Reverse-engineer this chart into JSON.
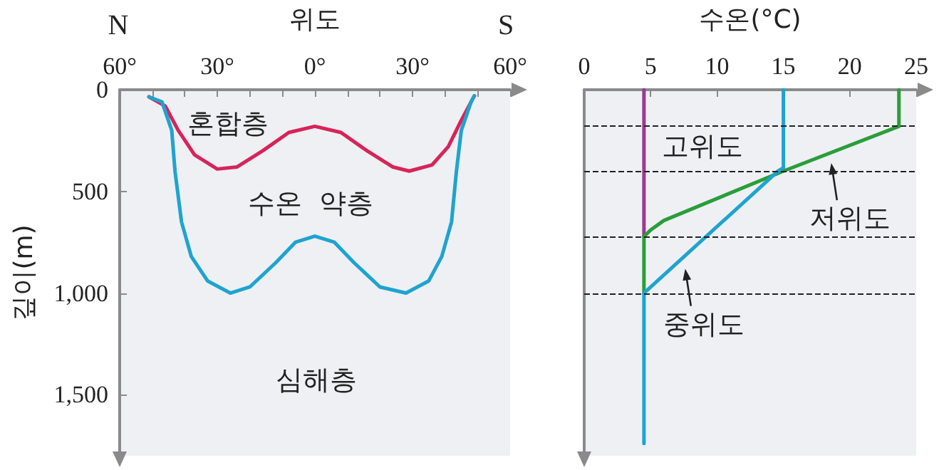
{
  "chart_data": [
    {
      "type": "line",
      "xlabel": "위도",
      "ylabel": "깊이(m)",
      "xlim": [
        -60,
        60
      ],
      "xticks": [
        {
          "value": -60,
          "label": "60°"
        },
        {
          "value": -50,
          "label": null
        },
        {
          "value": -40,
          "label": null
        },
        {
          "value": -30,
          "label": "30°"
        },
        {
          "value": -20,
          "label": null
        },
        {
          "value": -10,
          "label": null
        },
        {
          "value": 0,
          "label": "0°"
        },
        {
          "value": 10,
          "label": null
        },
        {
          "value": 20,
          "label": null
        },
        {
          "value": 30,
          "label": "30°"
        },
        {
          "value": 40,
          "label": null
        },
        {
          "value": 50,
          "label": null
        },
        {
          "value": 60,
          "label": "60°"
        }
      ],
      "ylim": [
        1800,
        0
      ],
      "yticks": [
        0,
        500,
        {
          "value": 1000,
          "label": "1,000"
        },
        {
          "value": 1500,
          "label": "1,500"
        }
      ],
      "series": [
        {
          "color": "#d6245a",
          "x": [
            -51,
            -46,
            -42,
            -37,
            -30,
            -24,
            -16,
            -8,
            0,
            8,
            16,
            24,
            29,
            36,
            41,
            45,
            49
          ],
          "values": [
            35,
            80,
            200,
            320,
            390,
            380,
            300,
            210,
            180,
            210,
            300,
            380,
            400,
            370,
            280,
            150,
            30
          ]
        },
        {
          "color": "#1fa3d0",
          "x": [
            -51,
            -47,
            -44,
            -43,
            -41,
            -38,
            -33,
            -26,
            -20,
            -12,
            -6,
            0,
            6,
            12,
            20,
            28,
            35,
            39,
            42,
            43.5,
            45,
            48,
            49
          ],
          "values": [
            35,
            60,
            200,
            400,
            650,
            820,
            940,
            1000,
            970,
            850,
            750,
            720,
            750,
            850,
            970,
            1000,
            940,
            820,
            650,
            400,
            200,
            60,
            30
          ]
        }
      ],
      "annotations": [
        "N",
        "S",
        "혼합층",
        "수온  약층",
        "심해층"
      ],
      "marker": "none",
      "line_style": "solid",
      "grid": false
    },
    {
      "type": "line",
      "xlabel": "수온(°C)",
      "xlim": [
        0,
        25
      ],
      "xticks": [
        0,
        5,
        10,
        15,
        20,
        25
      ],
      "ylim": [
        1800,
        0
      ],
      "tick_labels": "x",
      "series": [
        {
          "color": "#9b3a8f",
          "x": [
            4.5,
            4.5
          ],
          "values": [
            0,
            720
          ]
        },
        {
          "color": "#2a9d3a",
          "x": [
            23.7,
            23.7,
            15,
            6,
            5,
            4.5,
            4.5
          ],
          "values": [
            0,
            180,
            400,
            643,
            690,
            722,
            1000
          ]
        },
        {
          "color": "#1fa3d0",
          "x": [
            15,
            15,
            14.6,
            4.5,
            4.5
          ],
          "values": [
            0,
            384,
            400,
            1000,
            1740
          ]
        }
      ],
      "ref_lines": [
        {
          "axis": "y",
          "value": 180,
          "color": "#222222",
          "line_style": "dashed"
        },
        {
          "axis": "y",
          "value": 400,
          "color": "#222222",
          "line_style": "dashed"
        },
        {
          "axis": "y",
          "value": 720,
          "color": "#222222",
          "line_style": "dashed"
        },
        {
          "axis": "y",
          "value": 1000,
          "color": "#222222",
          "line_style": "dashed"
        }
      ],
      "annotations": [
        "고위도",
        {
          "text": "저위도",
          "x": 18.5,
          "y": 340
        },
        {
          "text": "중위도",
          "x": 7.5,
          "y": 860
        }
      ],
      "marker": "none",
      "line_style": "solid",
      "grid": false
    }
  ]
}
